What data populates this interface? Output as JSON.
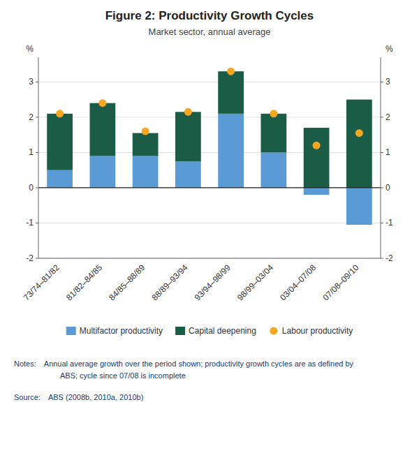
{
  "chart_data": {
    "type": "bar",
    "title": "Figure 2: Productivity Growth Cycles",
    "subtitle": "Market sector, annual average",
    "categories": [
      "73/74–81/82",
      "81/82–84/85",
      "84/85–88/89",
      "88/89–93/94",
      "93/94–98/99",
      "98/99–03/04",
      "03/04–07/08",
      "07/08–09/10"
    ],
    "series": [
      {
        "name": "Multifactor productivity",
        "type": "bar",
        "color": "#5B9BD5",
        "values": [
          0.5,
          0.9,
          0.9,
          0.75,
          2.1,
          1.0,
          -0.2,
          -1.05
        ]
      },
      {
        "name": "Capital deepening",
        "type": "bar",
        "color": "#1A5C45",
        "values": [
          1.6,
          1.5,
          0.65,
          1.4,
          1.2,
          1.1,
          1.7,
          2.5
        ]
      },
      {
        "name": "Labour productivity",
        "type": "scatter",
        "marker": "circle",
        "color": "#F5A623",
        "values": [
          2.1,
          2.4,
          1.6,
          2.15,
          3.3,
          2.1,
          1.2,
          1.55
        ]
      }
    ],
    "stacked": true,
    "ylim": [
      -2.0,
      3.7
    ],
    "yticks": [
      -2,
      -1,
      0,
      1,
      2,
      3
    ],
    "y2lim": [
      -2.0,
      3.7
    ],
    "y2ticks": [
      -2,
      -1,
      0,
      1,
      2,
      3
    ],
    "ylabel": "%",
    "y2label": "%",
    "grid": true,
    "legend": "bottom",
    "notes": [
      "Notes: Annual average growth over the period shown; productivity growth cycles are as defined by",
      "      ABS; cycle since 07/08 is incomplete"
    ],
    "source": "Source: ABS (2008b, 2010a, 2010b)"
  }
}
